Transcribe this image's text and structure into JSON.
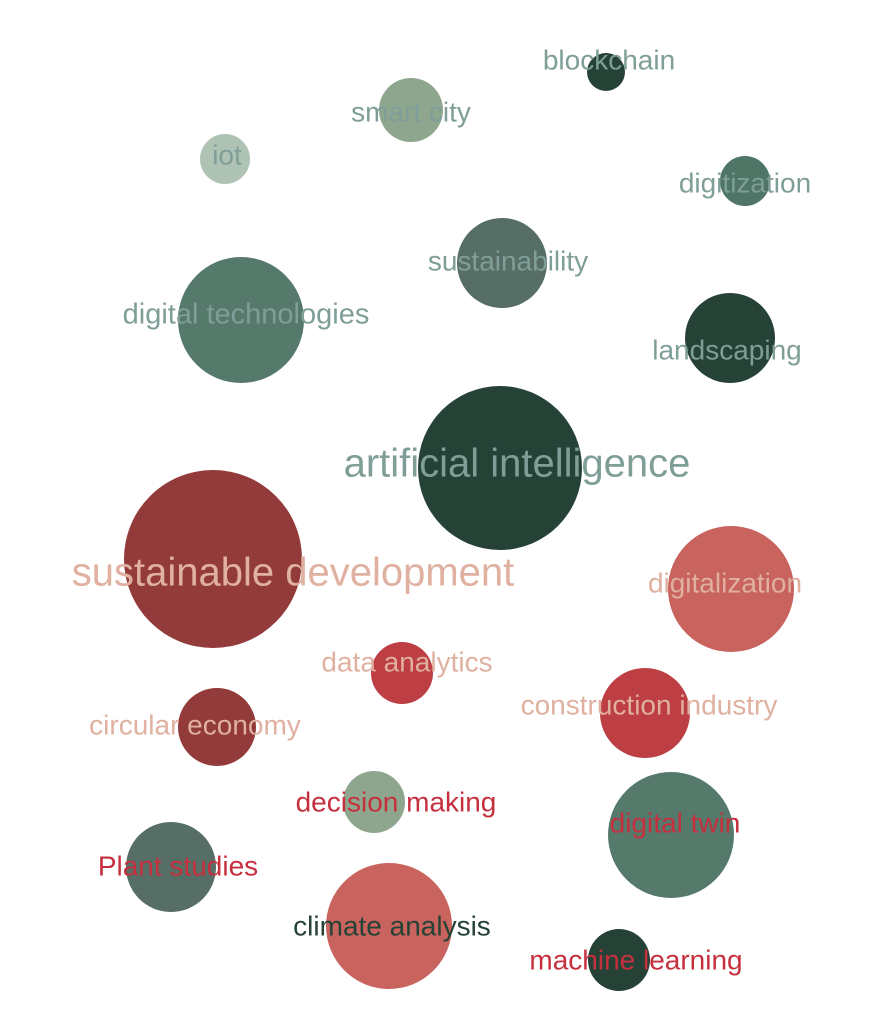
{
  "nodes": [
    {
      "label": "blockchain"
    },
    {
      "label": "smart city"
    },
    {
      "label": "iot"
    },
    {
      "label": "digitization"
    },
    {
      "label": "sustainability"
    },
    {
      "label": "digital technologies"
    },
    {
      "label": "landscaping"
    },
    {
      "label": "artificial intelligence"
    },
    {
      "label": "sustainable development"
    },
    {
      "label": "digitalization"
    },
    {
      "label": "data analytics"
    },
    {
      "label": "construction industry"
    },
    {
      "label": "circular economy"
    },
    {
      "label": "decision making"
    },
    {
      "label": "digital twin"
    },
    {
      "label": "Plant studies"
    },
    {
      "label": "climate analysis"
    },
    {
      "label": "machine learning"
    }
  ]
}
